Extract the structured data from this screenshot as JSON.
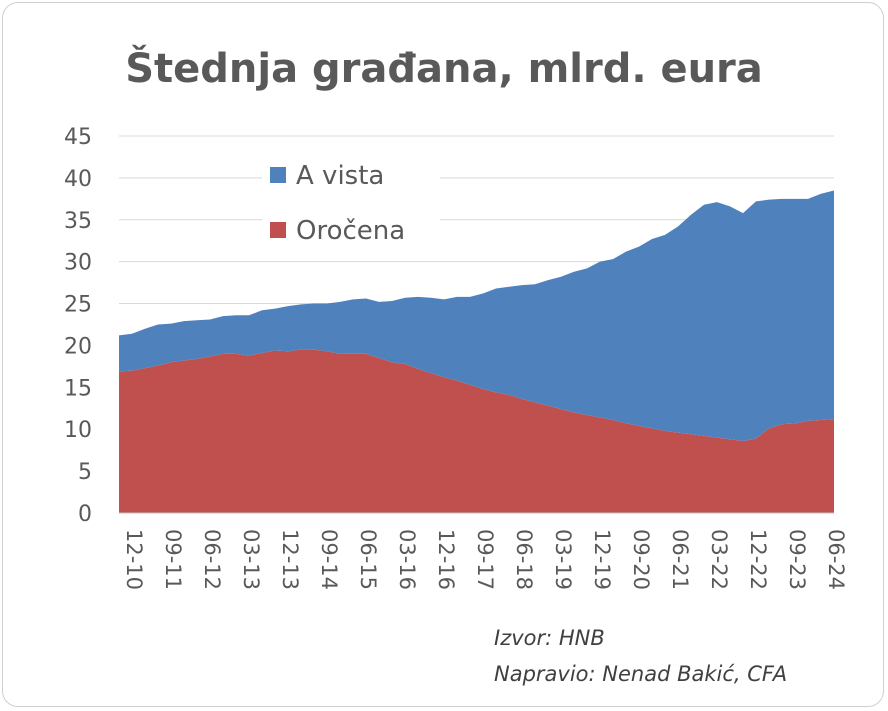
{
  "chart_data": {
    "type": "area",
    "stacked": true,
    "title": "Štednja građana, mlrd. eura",
    "xlabel": "",
    "ylabel": "",
    "ylim": [
      0,
      45
    ],
    "yticks": [
      0,
      5,
      10,
      15,
      20,
      25,
      30,
      35,
      40,
      45
    ],
    "grid": true,
    "legend_position": "top-left",
    "x": [
      "12-10",
      "03-11",
      "06-11",
      "09-11",
      "12-11",
      "03-12",
      "06-12",
      "09-12",
      "12-12",
      "03-13",
      "06-13",
      "09-13",
      "12-13",
      "03-14",
      "06-14",
      "09-14",
      "12-14",
      "03-15",
      "06-15",
      "09-15",
      "12-15",
      "03-16",
      "06-16",
      "09-16",
      "12-16",
      "03-17",
      "06-17",
      "09-17",
      "12-17",
      "03-18",
      "06-18",
      "09-18",
      "12-18",
      "03-19",
      "06-19",
      "09-19",
      "12-19",
      "03-20",
      "06-20",
      "09-20",
      "12-20",
      "03-21",
      "06-21",
      "09-21",
      "12-21",
      "03-22",
      "06-22",
      "09-22",
      "12-22",
      "03-23",
      "06-23",
      "09-23",
      "12-23",
      "03-24",
      "06-24",
      "09-24"
    ],
    "x_tick_labels": [
      "12-10",
      "09-11",
      "06-12",
      "03-13",
      "12-13",
      "09-14",
      "06-15",
      "03-16",
      "12-16",
      "09-17",
      "06-18",
      "03-19",
      "12-19",
      "09-20",
      "06-21",
      "03-22",
      "12-22",
      "09-23",
      "06-24"
    ],
    "series": [
      {
        "name": "Oročena",
        "color": "#c0504d",
        "values": [
          16.9,
          17.0,
          17.3,
          17.6,
          18.0,
          18.2,
          18.4,
          18.7,
          19.0,
          19.0,
          18.8,
          19.1,
          19.4,
          19.3,
          19.5,
          19.5,
          19.3,
          19.0,
          19.0,
          19.0,
          18.5,
          18.0,
          17.8,
          17.2,
          16.7,
          16.2,
          15.8,
          15.3,
          14.8,
          14.4,
          14.1,
          13.6,
          13.2,
          12.8,
          12.4,
          12.0,
          11.7,
          11.4,
          11.1,
          10.7,
          10.4,
          10.1,
          9.8,
          9.6,
          9.4,
          9.2,
          9.0,
          8.8,
          8.6,
          8.9,
          10.1,
          10.6,
          10.7,
          11.0,
          11.1,
          11.2
        ]
      },
      {
        "name": "A vista",
        "color": "#4f81bd",
        "values": [
          4.3,
          4.4,
          4.7,
          4.9,
          4.6,
          4.7,
          4.6,
          4.4,
          4.5,
          4.6,
          4.8,
          5.1,
          5.0,
          5.4,
          5.4,
          5.5,
          5.7,
          6.2,
          6.5,
          6.6,
          6.7,
          7.3,
          7.9,
          8.6,
          9.0,
          9.3,
          10.0,
          10.5,
          11.4,
          12.4,
          12.9,
          13.6,
          14.1,
          15.0,
          15.8,
          16.8,
          17.5,
          18.6,
          19.2,
          20.5,
          21.4,
          22.6,
          23.4,
          24.6,
          26.2,
          27.6,
          28.1,
          27.8,
          27.2,
          28.3,
          27.3,
          26.9,
          26.8,
          26.5,
          27.0,
          27.3
        ]
      }
    ]
  },
  "source_lines": [
    "Izvor: HNB",
    "Napravio: Nenad Bakić, CFA"
  ]
}
